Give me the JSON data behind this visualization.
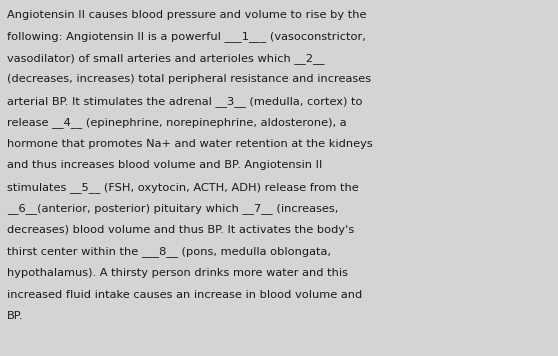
{
  "background_color": "#d4d4d4",
  "text_color": "#1a1a1a",
  "font_size": 8.2,
  "font_family": "DejaVu Sans",
  "text": "Angiotensin II causes blood pressure and volume to rise by the following: Angiotensin II is a powerful ___1___ (vasoconstrictor, vasodilator) of small arteries and arterioles which __2__ (decreases, increases) total peripheral resistance and increases arterial BP. It stimulates the adrenal __3__ (medulla, cortex) to release __4__ (epinephrine, norepinephrine, aldosterone), a hormone that promotes Na+ and water retention at the kidneys and thus increases blood volume and BP. Angiotensin II stimulates __5__ (FSH, oxytocin, ACTH, ADH) release from the __6__(anterior, posterior) pituitary which __7__ (increases, decreases) blood volume and thus BP. It activates the body's thirst center within the ___8__ (pons, medulla oblongata, hypothalamus). A thirsty person drinks more water and this increased fluid intake causes an increase in blood volume and BP.",
  "lines": [
    "Angiotensin II causes blood pressure and volume to rise by the",
    "following: Angiotensin II is a powerful ___1___ (vasoconstrictor,",
    "vasodilator) of small arteries and arterioles which __2__",
    "(decreases, increases) total peripheral resistance and increases",
    "arterial BP. It stimulates the adrenal __3__ (medulla, cortex) to",
    "release __4__ (epinephrine, norepinephrine, aldosterone), a",
    "hormone that promotes Na+ and water retention at the kidneys",
    "and thus increases blood volume and BP. Angiotensin II",
    "stimulates __5__ (FSH, oxytocin, ACTH, ADH) release from the",
    "__6__(anterior, posterior) pituitary which __7__ (increases,",
    "decreases) blood volume and thus BP. It activates the body's",
    "thirst center within the ___8__ (pons, medulla oblongata,",
    "hypothalamus). A thirsty person drinks more water and this",
    "increased fluid intake causes an increase in blood volume and",
    "BP."
  ]
}
